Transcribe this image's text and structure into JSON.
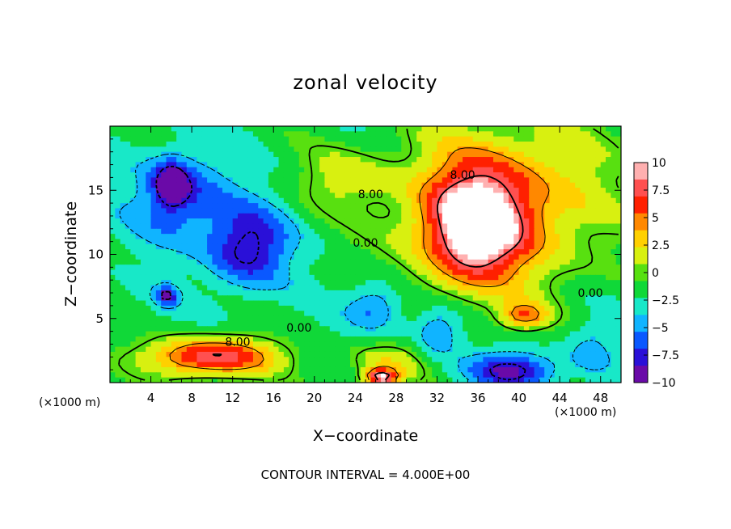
{
  "chart_data": {
    "type": "heatmap",
    "title": "zonal velocity",
    "xlabel": "X−coordinate",
    "ylabel": "Z−coordinate",
    "x_scale_note": "(×1000 m)",
    "y_scale_note": "(×1000 m)",
    "footnote": "CONTOUR INTERVAL = 4.000E+00",
    "xlim": [
      0,
      50
    ],
    "ylim": [
      0,
      20
    ],
    "x_ticks": [
      4,
      8,
      12,
      16,
      20,
      24,
      28,
      32,
      36,
      40,
      44,
      48
    ],
    "y_ticks": [
      5,
      10,
      15
    ],
    "colorbar": {
      "range": [
        -10,
        10
      ],
      "tick_labels": [
        "10",
        "7.5",
        "5",
        "2.5",
        "0",
        "−2.5",
        "−5",
        "−7.5",
        "−10"
      ],
      "tick_values": [
        10,
        7.5,
        5,
        2.5,
        0,
        -2.5,
        -5,
        -7.5,
        -10
      ],
      "colors": [
        "#6a0aa8",
        "#2a10d8",
        "#0a58ff",
        "#10b4ff",
        "#18e8c8",
        "#10d838",
        "#58e010",
        "#d8f010",
        "#ffd000",
        "#ff8800",
        "#ff2000",
        "#ff5050",
        "#ffb0b0"
      ]
    },
    "contour_labels": [
      {
        "text": "8.00",
        "x": 25.5,
        "y": 14.7
      },
      {
        "text": "8.00",
        "x": 34.5,
        "y": 16.2
      },
      {
        "text": "0.00",
        "x": 25.0,
        "y": 10.9
      },
      {
        "text": "0.00",
        "x": 47.0,
        "y": 7.0
      },
      {
        "text": "0.00",
        "x": 18.5,
        "y": 4.3
      },
      {
        "text": "8.00",
        "x": 12.5,
        "y": 3.2
      }
    ],
    "features": [
      {
        "kind": "max",
        "cx": 35.5,
        "cy": 12.0,
        "rx": 6.0,
        "ry": 5.5,
        "value": 10
      },
      {
        "kind": "min",
        "cx": 13.5,
        "cy": 10.5,
        "rx": 5.0,
        "ry": 4.0,
        "value": -10
      },
      {
        "kind": "min",
        "cx": 6.0,
        "cy": 15.5,
        "rx": 2.0,
        "ry": 2.2,
        "value": -9
      },
      {
        "kind": "min",
        "cx": 5.5,
        "cy": 6.8,
        "rx": 1.5,
        "ry": 1.0,
        "value": -9
      },
      {
        "kind": "max",
        "cx": 10.0,
        "cy": 2.0,
        "rx": 8.0,
        "ry": 1.9,
        "value": 10
      },
      {
        "kind": "max",
        "cx": 26.5,
        "cy": 0.4,
        "rx": 2.0,
        "ry": 0.8,
        "value": 10
      },
      {
        "kind": "min",
        "cx": 39.5,
        "cy": 1.0,
        "rx": 5.5,
        "ry": 1.8,
        "value": -10
      },
      {
        "kind": "min",
        "cx": 26.0,
        "cy": 6.0,
        "rx": 3.5,
        "ry": 2.5,
        "value": -7
      },
      {
        "kind": "min",
        "cx": 32.0,
        "cy": 4.0,
        "rx": 3.0,
        "ry": 2.5,
        "value": -7
      },
      {
        "kind": "min",
        "cx": 7.0,
        "cy": 14.5,
        "rx": 6.0,
        "ry": 4.5,
        "value": -8
      },
      {
        "kind": "max",
        "cx": 38.5,
        "cy": 14.0,
        "rx": 13.0,
        "ry": 8.0,
        "value": 6
      },
      {
        "kind": "max",
        "cx": 40.5,
        "cy": 5.2,
        "rx": 3.0,
        "ry": 1.3,
        "value": 5
      },
      {
        "kind": "min",
        "cx": 47.0,
        "cy": 2.5,
        "rx": 3.0,
        "ry": 3.0,
        "value": -5
      },
      {
        "kind": "max",
        "cx": 23.0,
        "cy": 16.0,
        "rx": 6.0,
        "ry": 3.0,
        "value": 1.5
      },
      {
        "kind": "max",
        "cx": 27.0,
        "cy": 1.5,
        "rx": 5.0,
        "ry": 2.0,
        "value": 2.5
      }
    ],
    "background_value": -2
  }
}
